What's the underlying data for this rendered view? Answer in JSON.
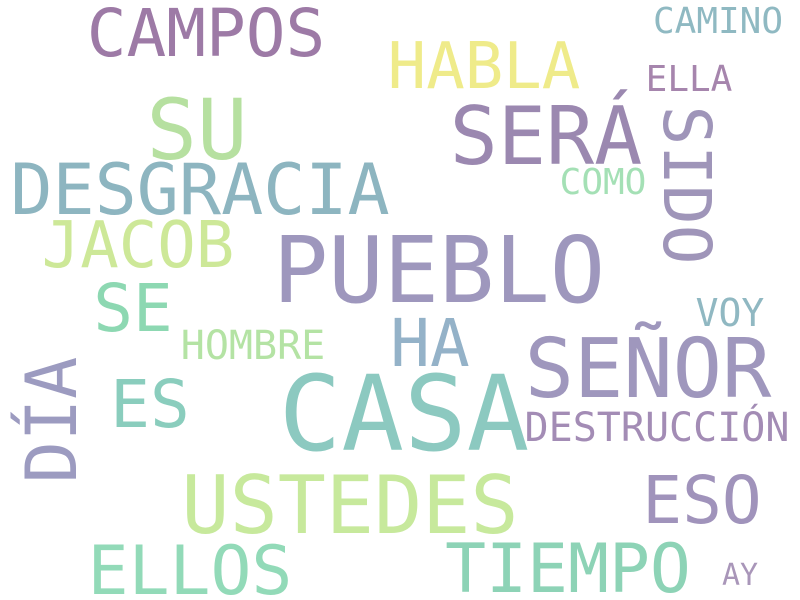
{
  "words": [
    {
      "text": "CAMPOS",
      "color": "#9d7aa6"
    },
    {
      "text": "HABLA",
      "color": "#efeb8a"
    },
    {
      "text": "CAMINO",
      "color": "#8fb9c2"
    },
    {
      "text": "ELLA",
      "color": "#a685ad"
    },
    {
      "text": "SU",
      "color": "#b6e0a0"
    },
    {
      "text": "SERÁ",
      "color": "#9b88b0"
    },
    {
      "text": "SIDO",
      "color": "#9f95b9"
    },
    {
      "text": "DESGRACIA",
      "color": "#8db5c0"
    },
    {
      "text": "COMO",
      "color": "#a4e0b5"
    },
    {
      "text": "JACOB",
      "color": "#cde898"
    },
    {
      "text": "PUEBLO",
      "color": "#9e97bd"
    },
    {
      "text": "SE",
      "color": "#8dd8b2"
    },
    {
      "text": "HA",
      "color": "#94b2c8"
    },
    {
      "text": "VOY",
      "color": "#90b8c2"
    },
    {
      "text": "HOMBRE",
      "color": "#b4e3a4"
    },
    {
      "text": "SEÑOR",
      "color": "#9f97bd"
    },
    {
      "text": "DÍA",
      "color": "#9c9bc0"
    },
    {
      "text": "ES",
      "color": "#8acdbd"
    },
    {
      "text": "CASA",
      "color": "#8cc9c0"
    },
    {
      "text": "DESTRUCCIÓN",
      "color": "#a38cb5"
    },
    {
      "text": "USTEDES",
      "color": "#c7e99c"
    },
    {
      "text": "ESO",
      "color": "#a093bb"
    },
    {
      "text": "ELLOS",
      "color": "#92dab8"
    },
    {
      "text": "TIEMPO",
      "color": "#8dd3b6"
    },
    {
      "text": "AY",
      "color": "#a996b9"
    }
  ]
}
